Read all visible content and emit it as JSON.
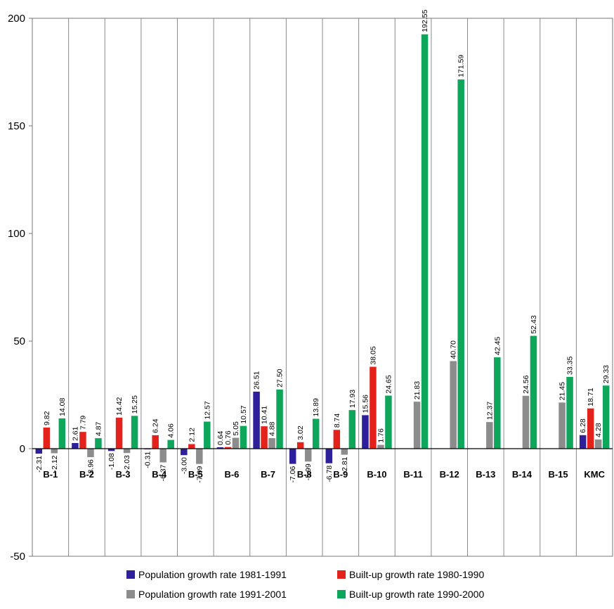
{
  "chart_data": {
    "type": "bar",
    "categories": [
      "B-1",
      "B-2",
      "B-3",
      "B-4",
      "B-5",
      "B-6",
      "B-7",
      "B-8",
      "B-9",
      "B-10",
      "B-11",
      "B-12",
      "B-13",
      "B-14",
      "B-15",
      "KMC"
    ],
    "series": [
      {
        "name": "Population growth rate 1981-1991",
        "color": "#2e1f9a",
        "values": [
          -2.31,
          2.61,
          -1.08,
          -0.31,
          -3.0,
          0.64,
          26.51,
          -7.06,
          -6.78,
          15.56,
          null,
          null,
          null,
          null,
          null,
          6.28
        ],
        "labels": [
          "-2.31",
          "2.61",
          "-1.08",
          "-0.31",
          "-3.00",
          "0.64",
          "26.51",
          "-7.06",
          "-6.78",
          "15.56",
          "",
          "",
          "",
          "",
          "",
          "6.28"
        ]
      },
      {
        "name": "Built-up growth rate 1980-1990",
        "color": "#e3221c",
        "values": [
          9.82,
          7.79,
          14.42,
          6.24,
          2.12,
          0.76,
          10.41,
          3.02,
          8.74,
          38.05,
          null,
          null,
          null,
          null,
          null,
          18.71
        ],
        "labels": [
          "9.82",
          "7.79",
          "14.42",
          "6.24",
          "2.12",
          "0.76",
          "10.41",
          "3.02",
          "8.74",
          "38.05",
          "",
          "",
          "",
          "",
          "",
          "18.71"
        ]
      },
      {
        "name": "Population growth rate 1991-2001",
        "color": "#8c8c8c",
        "values": [
          -2.12,
          -3.96,
          -2.03,
          -6.37,
          -7.09,
          5.05,
          4.88,
          -5.99,
          -2.81,
          1.76,
          21.83,
          40.7,
          12.37,
          24.56,
          21.45,
          4.28
        ],
        "labels": [
          "-2.12",
          "-3.96",
          "-2.03",
          "-6.37",
          "-7.09",
          "5.05",
          "4.88",
          "-5.99",
          "-2.81",
          "1.76",
          "21.83",
          "40.70",
          "12.37",
          "24.56",
          "21.45",
          "4.28"
        ]
      },
      {
        "name": "Built-up growth rate 1990-2000",
        "color": "#0ea65b",
        "values": [
          14.08,
          4.87,
          15.25,
          4.06,
          12.57,
          10.57,
          27.5,
          13.89,
          17.93,
          24.65,
          192.55,
          171.59,
          42.45,
          52.43,
          33.35,
          29.33
        ],
        "labels": [
          "14.08",
          "4.87",
          "15.25",
          "4.06",
          "12.57",
          "10.57",
          "27.50",
          "13.89",
          "17.93",
          "24.65",
          "192.55",
          "171.59",
          "42.45",
          "52.43",
          "33.35",
          "29.33"
        ]
      }
    ],
    "yticks": [
      "200",
      "150",
      "100",
      "50",
      "0",
      "-50"
    ],
    "ytick_values": [
      200,
      150,
      100,
      50,
      0,
      -50
    ],
    "ylim": [
      -50,
      200
    ],
    "grid": "vertical category dividers",
    "legend_position": "bottom",
    "title": "",
    "xlabel": "",
    "ylabel": ""
  }
}
